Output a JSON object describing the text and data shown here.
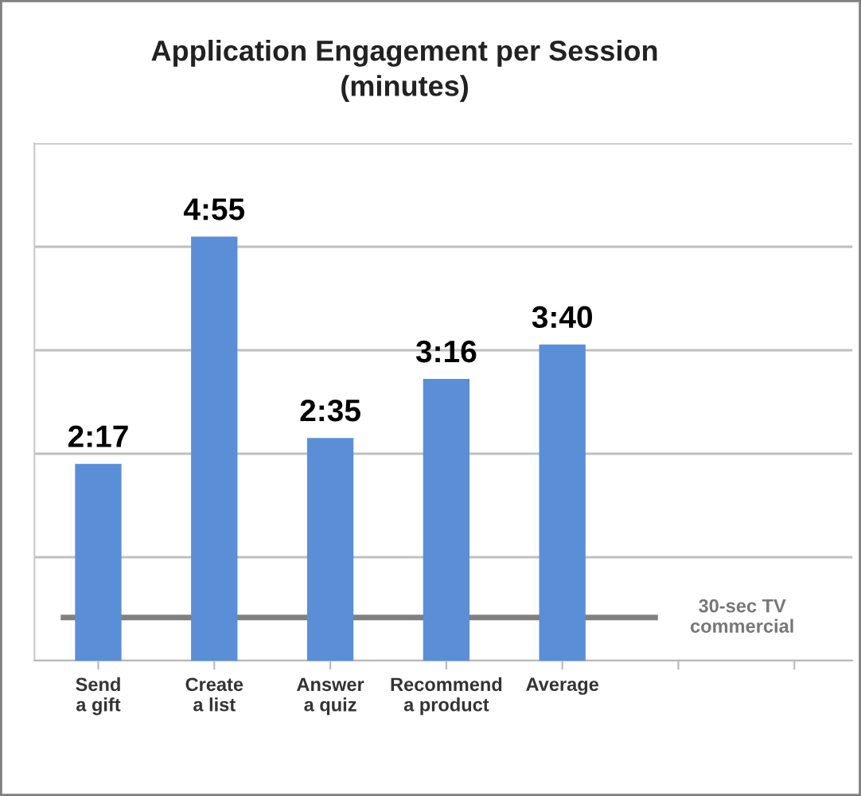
{
  "chart_data": {
    "type": "bar",
    "title": "Application Engagement per Session\n(minutes)",
    "categories": [
      "Send\na gift",
      "Create\na list",
      "Answer\na quiz",
      "Recommend\na product",
      "Average",
      null,
      null
    ],
    "values": [
      2.283,
      4.917,
      2.583,
      3.267,
      3.667,
      null,
      null
    ],
    "value_labels": [
      "2:17",
      "4:55",
      "2:35",
      "3:16",
      "3:40",
      null,
      null
    ],
    "color": "#5a8fd8",
    "ylim": [
      0,
      6
    ],
    "yticks": [
      {
        "value": 0,
        "label": null
      },
      {
        "value": 1.2,
        "label": null
      },
      {
        "value": 2.4,
        "label": null
      },
      {
        "value": 3.6,
        "label": null
      },
      {
        "value": 4.8,
        "label": null
      },
      {
        "value": 6.0,
        "label": null
      }
    ],
    "grid": "y",
    "ref_lines": [
      {
        "axis": "y",
        "value": 0.5,
        "label": "30-sec TV\ncommercial",
        "color": "#808080"
      }
    ]
  }
}
